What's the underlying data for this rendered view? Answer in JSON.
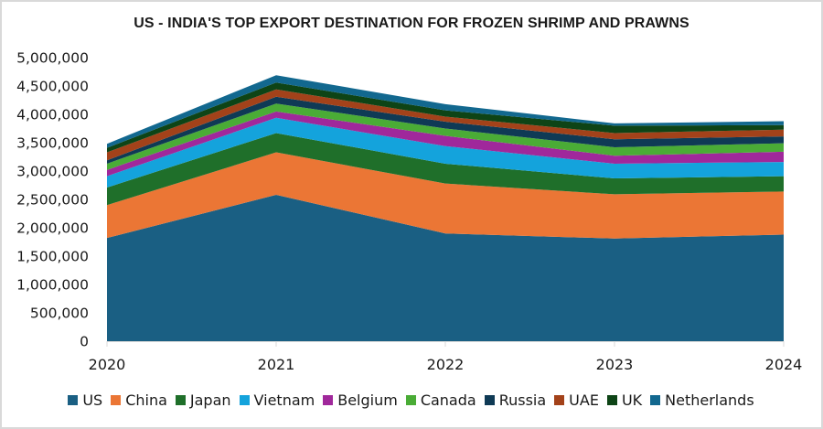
{
  "chart_data": {
    "type": "area",
    "stacked": true,
    "title": "US - INDIA'S TOP EXPORT DESTINATION FOR FROZEN SHRIMP AND PRAWNS",
    "xlabel": "",
    "ylabel": "",
    "x": [
      "2020",
      "2021",
      "2022",
      "2023",
      "2024"
    ],
    "ylim": [
      0,
      5000000
    ],
    "yticks": [
      0,
      500000,
      1000000,
      1500000,
      2000000,
      2500000,
      3000000,
      3500000,
      4000000,
      4500000,
      5000000
    ],
    "ytick_labels": [
      "0",
      "500,000",
      "1,000,000",
      "1,500,000",
      "2,000,000",
      "2,500,000",
      "3,000,000",
      "3,500,000",
      "4,000,000",
      "4,500,000",
      "5,000,000"
    ],
    "grid": false,
    "legend_position": "bottom",
    "series": [
      {
        "name": "US",
        "color": "#1a5f83",
        "values": [
          1820000,
          2580000,
          1900000,
          1810000,
          1880000
        ]
      },
      {
        "name": "China",
        "color": "#eb7635",
        "values": [
          580000,
          750000,
          880000,
          780000,
          760000
        ]
      },
      {
        "name": "Japan",
        "color": "#1f6f2a",
        "values": [
          310000,
          340000,
          350000,
          280000,
          270000
        ]
      },
      {
        "name": "Vietnam",
        "color": "#14a3dc",
        "values": [
          200000,
          270000,
          310000,
          260000,
          250000
        ]
      },
      {
        "name": "Belgium",
        "color": "#a0289b",
        "values": [
          110000,
          110000,
          180000,
          140000,
          180000
        ]
      },
      {
        "name": "Canada",
        "color": "#4aac36",
        "values": [
          110000,
          140000,
          130000,
          150000,
          150000
        ]
      },
      {
        "name": "Russia",
        "color": "#0f3a55",
        "values": [
          60000,
          120000,
          120000,
          140000,
          120000
        ]
      },
      {
        "name": "UAE",
        "color": "#a3421a",
        "values": [
          140000,
          130000,
          90000,
          110000,
          120000
        ]
      },
      {
        "name": "UK",
        "color": "#0e4416",
        "values": [
          80000,
          120000,
          110000,
          130000,
          80000
        ]
      },
      {
        "name": "Netherlands",
        "color": "#12688f",
        "values": [
          70000,
          130000,
          110000,
          40000,
          70000
        ]
      }
    ]
  }
}
